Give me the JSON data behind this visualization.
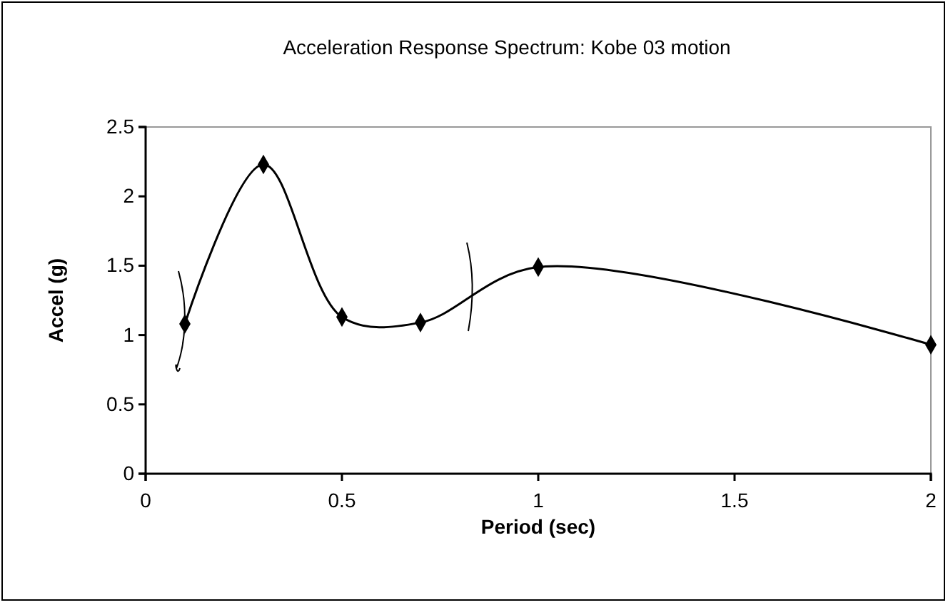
{
  "chart_data": {
    "type": "line",
    "title": "Acceleration Response Spectrum: Kobe 03 motion",
    "xlabel": "Period (sec)",
    "ylabel": "Accel (g)",
    "x": [
      0.1,
      0.3,
      0.5,
      0.7,
      1,
      2
    ],
    "series": [
      {
        "color": "#000000",
        "values": [
          1.08,
          2.23,
          1.13,
          1.09,
          1.49,
          0.93
        ]
      }
    ],
    "xlim": [
      0,
      2
    ],
    "xticks": [
      0,
      0.5,
      1,
      1.5,
      2
    ],
    "ylim": [
      0,
      2.5
    ],
    "yticks": [
      0,
      0.5,
      1,
      1.5,
      2,
      2.5
    ],
    "marker": "diamond",
    "line_style": "solid"
  }
}
